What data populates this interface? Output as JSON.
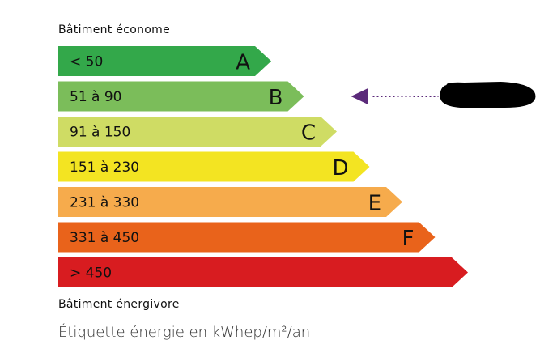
{
  "header": {
    "top_label": "Bâtiment économe"
  },
  "footer": {
    "bottom_label": "Bâtiment énergivore",
    "unit_label": "Étiquette énergie en kWhep/m²/an"
  },
  "classes": [
    {
      "range": "< 50",
      "letter": "A",
      "color": "#33a84a"
    },
    {
      "range": "51 à 90",
      "letter": "B",
      "color": "#7bbd5a"
    },
    {
      "range": "91 à 150",
      "letter": "C",
      "color": "#cfdc64"
    },
    {
      "range": "151 à 230",
      "letter": "D",
      "color": "#f3e422"
    },
    {
      "range": "231 à 330",
      "letter": "E",
      "color": "#f6ab4c"
    },
    {
      "range": "331 à 450",
      "letter": "F",
      "color": "#e9631b"
    },
    {
      "range": "> 450",
      "letter": "",
      "color": "#d81c20"
    }
  ],
  "indicator": {
    "current_class": "B",
    "color": "#5b2a7a",
    "value": "redacted"
  }
}
